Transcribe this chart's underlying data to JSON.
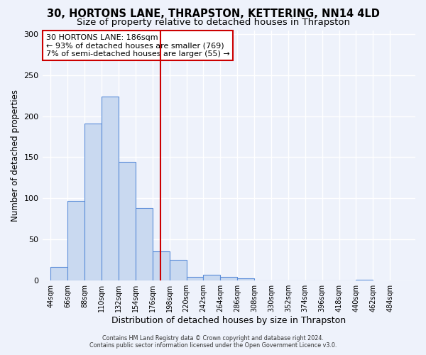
{
  "title1": "30, HORTONS LANE, THRAPSTON, KETTERING, NN14 4LD",
  "title2": "Size of property relative to detached houses in Thrapston",
  "xlabel": "Distribution of detached houses by size in Thrapston",
  "ylabel": "Number of detached properties",
  "bar_values": [
    16,
    97,
    191,
    224,
    144,
    88,
    35,
    25,
    4,
    7,
    4,
    2,
    0,
    0,
    0,
    0,
    0,
    0,
    1
  ],
  "bin_starts": [
    44,
    66,
    88,
    110,
    132,
    154,
    176,
    198,
    220,
    242,
    264,
    286,
    308,
    330,
    352,
    374,
    396,
    418,
    440,
    462,
    484
  ],
  "bin_width": 22,
  "bar_color": "#c9d9f0",
  "bar_edge_color": "#5b8dd9",
  "vline_x": 186,
  "vline_color": "#cc0000",
  "annotation_title": "30 HORTONS LANE: 186sqm",
  "annotation_line2": "← 93% of detached houses are smaller (769)",
  "annotation_line3": "7% of semi-detached houses are larger (55) →",
  "annotation_box_color": "#cc0000",
  "annotation_text_color": "#000000",
  "ylim": [
    0,
    305
  ],
  "yticks": [
    0,
    50,
    100,
    150,
    200,
    250,
    300
  ],
  "xtick_labels": [
    "44sqm",
    "66sqm",
    "88sqm",
    "110sqm",
    "132sqm",
    "154sqm",
    "176sqm",
    "198sqm",
    "220sqm",
    "242sqm",
    "264sqm",
    "286sqm",
    "308sqm",
    "330sqm",
    "352sqm",
    "374sqm",
    "396sqm",
    "418sqm",
    "440sqm",
    "462sqm",
    "484sqm"
  ],
  "footer1": "Contains HM Land Registry data © Crown copyright and database right 2024.",
  "footer2": "Contains public sector information licensed under the Open Government Licence v3.0.",
  "bg_color": "#eef2fb",
  "grid_color": "#ffffff",
  "title1_fontsize": 10.5,
  "title2_fontsize": 9.5
}
